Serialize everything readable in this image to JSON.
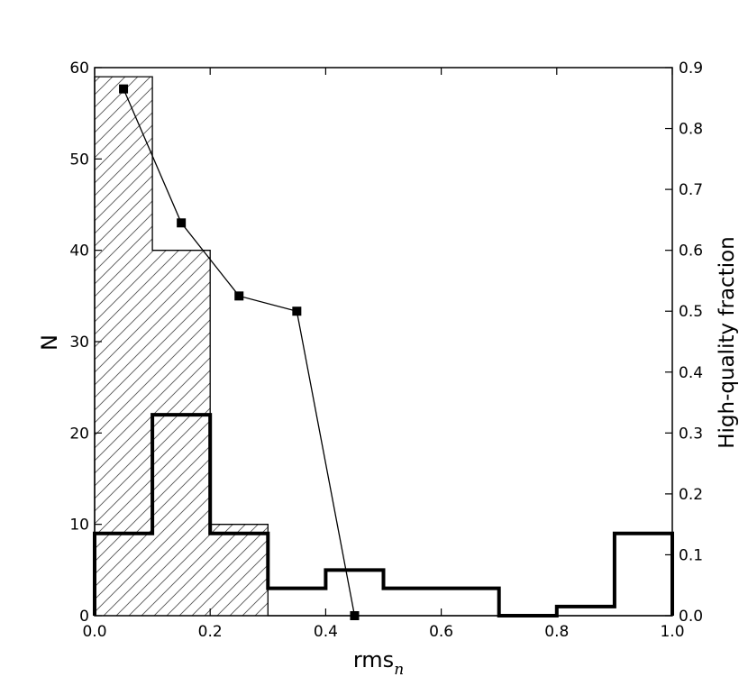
{
  "chart_data": {
    "type": "bar",
    "title": "",
    "xlabel": "rms",
    "xlabel_subscript": "n",
    "ylabel": "N",
    "y2label": "High-quality fraction",
    "xlim": [
      0.0,
      1.0
    ],
    "ylim": [
      0,
      60
    ],
    "y2lim": [
      0.0,
      0.9
    ],
    "grid": false,
    "bin_edges": [
      0.0,
      0.1,
      0.2,
      0.3,
      0.4,
      0.5,
      0.6,
      0.7,
      0.8,
      0.9,
      1.0
    ],
    "x_ticks": [
      "0.0",
      "0.2",
      "0.4",
      "0.6",
      "0.8",
      "1.0"
    ],
    "y_ticks": [
      "0",
      "10",
      "20",
      "30",
      "40",
      "50",
      "60"
    ],
    "y2_ticks": [
      "0.0",
      "0.1",
      "0.2",
      "0.3",
      "0.4",
      "0.5",
      "0.6",
      "0.7",
      "0.8",
      "0.9"
    ],
    "series": [
      {
        "style": "hatched-step",
        "axis": "left",
        "values": [
          59,
          40,
          10,
          0,
          0,
          0,
          0,
          0,
          0,
          0
        ]
      },
      {
        "style": "thick-step",
        "axis": "left",
        "values": [
          9,
          22,
          9,
          3,
          5,
          3,
          3,
          0,
          1,
          9
        ]
      },
      {
        "style": "line-square-markers",
        "axis": "right",
        "x": [
          0.05,
          0.15,
          0.25,
          0.35,
          0.45
        ],
        "values": [
          0.865,
          0.645,
          0.525,
          0.5,
          0.0
        ]
      }
    ]
  }
}
